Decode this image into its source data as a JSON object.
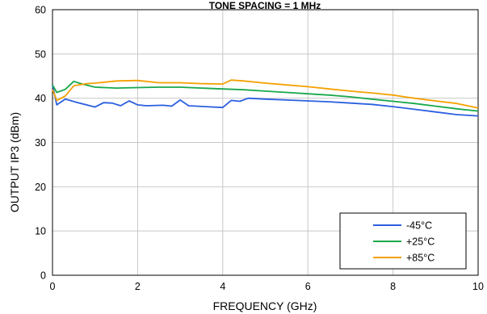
{
  "chart_data": {
    "type": "line",
    "title": "TONE SPACING = 1 MHz",
    "xlabel": "FREQUENCY (GHz)",
    "ylabel": "OUTPUT IP3 (dBm)",
    "xlim": [
      0,
      10
    ],
    "ylim": [
      0,
      60
    ],
    "xticks": [
      0,
      2,
      4,
      6,
      8,
      10
    ],
    "yticks": [
      0,
      10,
      20,
      30,
      40,
      50,
      60
    ],
    "grid": true,
    "legend_position": "bottom-right",
    "series": [
      {
        "name": "-45°C",
        "color": "#2b5fe0",
        "points": [
          [
            0,
            43
          ],
          [
            0.1,
            38.5
          ],
          [
            0.3,
            39.8
          ],
          [
            0.6,
            39
          ],
          [
            1,
            38
          ],
          [
            1.2,
            39
          ],
          [
            1.4,
            38.9
          ],
          [
            1.6,
            38.3
          ],
          [
            1.8,
            39.4
          ],
          [
            2,
            38.5
          ],
          [
            2.2,
            38.3
          ],
          [
            2.6,
            38.4
          ],
          [
            2.8,
            38.2
          ],
          [
            3,
            39.6
          ],
          [
            3.2,
            38.3
          ],
          [
            3.6,
            38.1
          ],
          [
            4,
            37.9
          ],
          [
            4.2,
            39.5
          ],
          [
            4.4,
            39.3
          ],
          [
            4.6,
            40
          ],
          [
            5,
            39.8
          ],
          [
            5.5,
            39.6
          ],
          [
            6,
            39.4
          ],
          [
            6.5,
            39.2
          ],
          [
            7,
            38.9
          ],
          [
            7.5,
            38.6
          ],
          [
            8,
            38.1
          ],
          [
            8.5,
            37.5
          ],
          [
            9,
            36.9
          ],
          [
            9.5,
            36.3
          ],
          [
            10,
            36
          ]
        ]
      },
      {
        "name": "+25°C",
        "color": "#19a84c",
        "points": [
          [
            0,
            43
          ],
          [
            0.1,
            41.3
          ],
          [
            0.3,
            42
          ],
          [
            0.5,
            43.8
          ],
          [
            0.7,
            43.2
          ],
          [
            1,
            42.5
          ],
          [
            1.5,
            42.3
          ],
          [
            2,
            42.4
          ],
          [
            2.5,
            42.5
          ],
          [
            3,
            42.5
          ],
          [
            3.5,
            42.3
          ],
          [
            4,
            42.1
          ],
          [
            4.5,
            41.9
          ],
          [
            5,
            41.6
          ],
          [
            5.5,
            41.3
          ],
          [
            6,
            41
          ],
          [
            6.5,
            40.7
          ],
          [
            7,
            40.3
          ],
          [
            7.5,
            39.8
          ],
          [
            8,
            39.3
          ],
          [
            8.5,
            38.8
          ],
          [
            9,
            38.2
          ],
          [
            9.5,
            37.6
          ],
          [
            10,
            37.1
          ]
        ]
      },
      {
        "name": "+85°C",
        "color": "#f5a000",
        "points": [
          [
            0,
            42
          ],
          [
            0.1,
            39.5
          ],
          [
            0.3,
            40.5
          ],
          [
            0.5,
            42.8
          ],
          [
            0.8,
            43.3
          ],
          [
            1,
            43.4
          ],
          [
            1.5,
            43.9
          ],
          [
            2,
            44
          ],
          [
            2.5,
            43.5
          ],
          [
            3,
            43.5
          ],
          [
            3.5,
            43.3
          ],
          [
            4,
            43.2
          ],
          [
            4.2,
            44.1
          ],
          [
            4.5,
            43.9
          ],
          [
            5,
            43.4
          ],
          [
            5.5,
            43
          ],
          [
            6,
            42.6
          ],
          [
            6.5,
            42.1
          ],
          [
            7,
            41.6
          ],
          [
            7.5,
            41.2
          ],
          [
            8,
            40.7
          ],
          [
            8.5,
            40
          ],
          [
            9,
            39.4
          ],
          [
            9.5,
            38.8
          ],
          [
            10,
            37.8
          ]
        ]
      }
    ]
  }
}
